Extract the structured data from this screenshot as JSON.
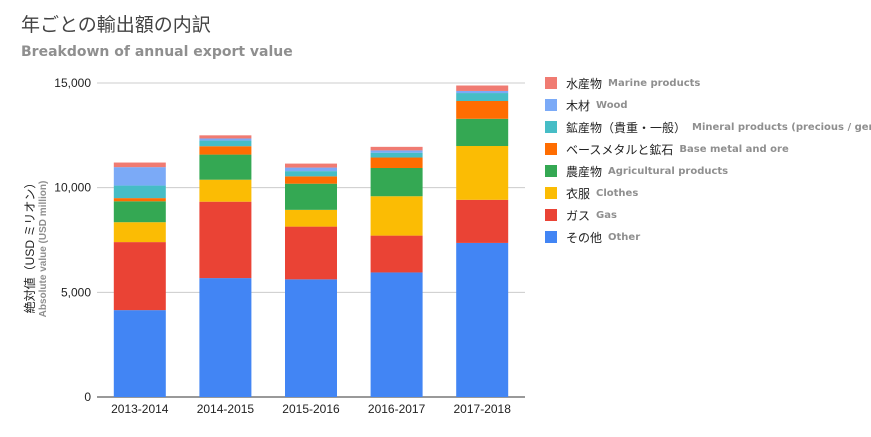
{
  "chart_data": {
    "type": "bar",
    "stacked": true,
    "title": "年ごとの輸出額の内訳",
    "subtitle": "Breakdown of annual export value",
    "ylabel": "絶対値（USD ミリオン）",
    "ylabel_en": "Absolute value (USD million)",
    "ylim": [
      0,
      15000
    ],
    "yticks": [
      0,
      5000,
      10000,
      15000
    ],
    "ytick_labels": [
      "0",
      "5,000",
      "10,000",
      "15,000"
    ],
    "grid": true,
    "legend_position": "right",
    "categories": [
      "2013-2014",
      "2014-2015",
      "2015-2016",
      "2016-2017",
      "2017-2018"
    ],
    "series": [
      {
        "name": "その他",
        "name_en": "Other",
        "color": "#4285f4",
        "values": [
          4150,
          5680,
          5620,
          5950,
          7360
        ]
      },
      {
        "name": "ガス",
        "name_en": "Gas",
        "color": "#ea4335",
        "values": [
          3250,
          3650,
          2520,
          1760,
          2060
        ]
      },
      {
        "name": "衣服",
        "name_en": "Clothes",
        "color": "#fbbc04",
        "values": [
          950,
          1050,
          800,
          1880,
          2570
        ]
      },
      {
        "name": "農産物",
        "name_en": "Agricultural products",
        "color": "#34a853",
        "values": [
          1000,
          1200,
          1250,
          1350,
          1300
        ]
      },
      {
        "name": "ベースメタルと鉱石",
        "name_en": "Base metal and ore",
        "color": "#ff6d01",
        "values": [
          150,
          400,
          350,
          500,
          850
        ]
      },
      {
        "name": "鉱産物（貴重・一般）",
        "name_en": "Mineral products (precious / general)",
        "color": "#46bdc6",
        "values": [
          600,
          270,
          250,
          230,
          380
        ]
      },
      {
        "name": "木材",
        "name_en": "Wood",
        "color": "#7baaf7",
        "values": [
          880,
          100,
          170,
          110,
          100
        ]
      },
      {
        "name": "水産物",
        "name_en": "Marine products",
        "color": "#f07b72",
        "values": [
          220,
          150,
          190,
          170,
          260
        ]
      }
    ]
  }
}
